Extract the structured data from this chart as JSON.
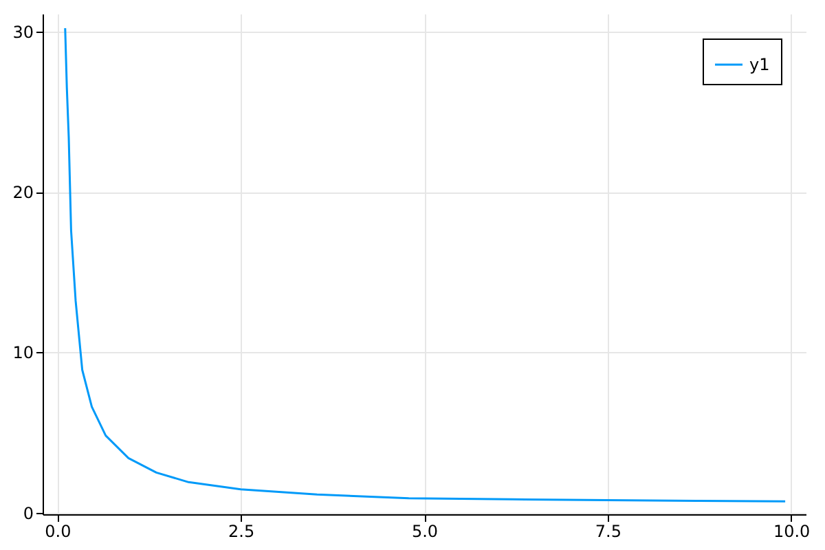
{
  "chart_data": {
    "type": "line",
    "x": [
      0.107,
      0.13,
      0.156,
      0.188,
      0.25,
      0.34,
      0.47,
      0.66,
      0.97,
      1.35,
      1.79,
      2.5,
      3.54,
      4.79,
      6.2,
      7.5,
      8.7,
      9.92
    ],
    "series": [
      {
        "name": "y1",
        "color": "#009af9",
        "values": [
          30.2,
          26.5,
          23.4,
          17.6,
          13.2,
          8.9,
          6.6,
          4.8,
          3.4,
          2.5,
          1.9,
          1.45,
          1.13,
          0.9,
          0.83,
          0.78,
          0.74,
          0.7
        ]
      }
    ],
    "xlim": [
      -0.2,
      10.2
    ],
    "xticks": [
      {
        "value": 0,
        "label": "0.0"
      },
      {
        "value": 2.5,
        "label": "2.5"
      },
      {
        "value": 5,
        "label": "5.0"
      },
      {
        "value": 7.5,
        "label": "7.5"
      },
      {
        "value": 10,
        "label": "10.0"
      }
    ],
    "ylim": [
      -0.1,
      31.1
    ],
    "yticks": [
      0,
      10,
      20,
      30
    ],
    "grid": true,
    "legend": "top right",
    "line_style": "solid",
    "marker": "none"
  }
}
